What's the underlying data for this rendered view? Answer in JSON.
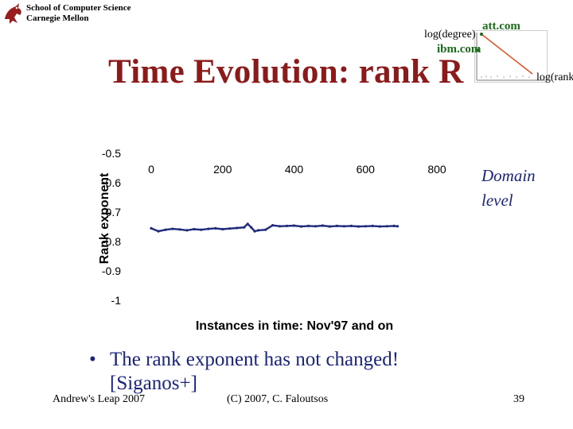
{
  "header": {
    "school_line1": "School of Computer Science",
    "school_line2": "Carnegie Mellon"
  },
  "title": "Time Evolution: rank R",
  "inset": {
    "y_label": "log(degree)",
    "x_label": "log(rank)",
    "label_att": "att.com",
    "label_ibm": "ibm.com",
    "accent_color": "#1a6b1a"
  },
  "chart_data": {
    "type": "line",
    "xlabel": "Instances in time: Nov'97 and on",
    "ylabel": "Rank exponent",
    "x_ticks": [
      0,
      200,
      400,
      600,
      800
    ],
    "y_ticks": [
      -0.5,
      -0.6,
      -0.7,
      -0.8,
      -0.9,
      -1
    ],
    "y_tick_labels": [
      "-0.5",
      "-0.6",
      "-0.7",
      "-0.8",
      "-0.9",
      "-1"
    ],
    "xlim": [
      0,
      800
    ],
    "ylim": [
      -1,
      -0.5
    ],
    "series": [
      {
        "color": "#1f2a7a",
        "x": [
          0,
          20,
          40,
          60,
          80,
          100,
          120,
          140,
          160,
          180,
          200,
          220,
          240,
          260,
          270,
          280,
          290,
          300,
          320,
          340,
          360,
          380,
          400,
          420,
          440,
          460,
          480,
          500,
          520,
          540,
          560,
          580,
          600,
          620,
          640,
          660,
          680,
          690
        ],
        "y": [
          -0.755,
          -0.765,
          -0.76,
          -0.757,
          -0.759,
          -0.762,
          -0.758,
          -0.76,
          -0.757,
          -0.755,
          -0.758,
          -0.756,
          -0.754,
          -0.752,
          -0.74,
          -0.752,
          -0.765,
          -0.762,
          -0.76,
          -0.745,
          -0.748,
          -0.747,
          -0.746,
          -0.749,
          -0.747,
          -0.748,
          -0.746,
          -0.749,
          -0.747,
          -0.748,
          -0.747,
          -0.749,
          -0.748,
          -0.747,
          -0.749,
          -0.748,
          -0.747,
          -0.748
        ]
      }
    ]
  },
  "note": {
    "line1": "Domain",
    "line2": "level"
  },
  "bullet": {
    "symbol": "•",
    "text": "The rank exponent has not changed! [Siganos+]"
  },
  "footer": {
    "left": "Andrew's Leap 2007",
    "center": "(C) 2007, C. Faloutsos",
    "page": "39"
  }
}
